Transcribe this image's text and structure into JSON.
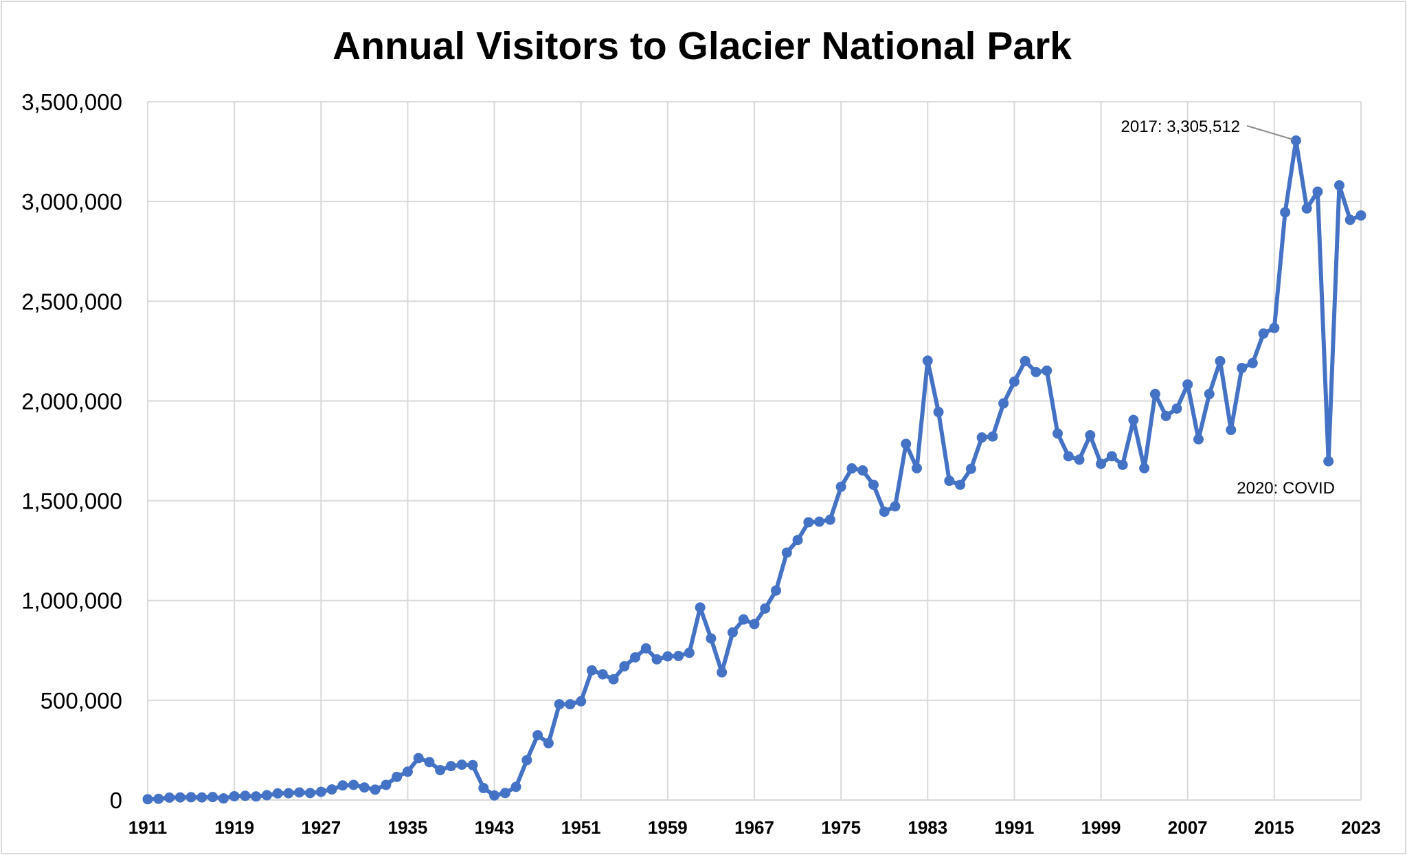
{
  "chart_data": {
    "type": "line",
    "title": "Annual Visitors to Glacier National Park",
    "xlabel": "",
    "ylabel": "",
    "ylim": [
      0,
      3500000
    ],
    "xlim": [
      1911,
      2023
    ],
    "grid": true,
    "legend": "none",
    "line_color": "#4472C4",
    "y_ticks": [
      "0",
      "500,000",
      "1,000,000",
      "1,500,000",
      "2,000,000",
      "2,500,000",
      "3,000,000",
      "3,500,000"
    ],
    "x_ticks": [
      "1911",
      "1919",
      "1927",
      "1935",
      "1943",
      "1951",
      "1959",
      "1967",
      "1975",
      "1983",
      "1991",
      "1999",
      "2007",
      "2015",
      "2023"
    ],
    "x": [
      1911,
      1912,
      1913,
      1914,
      1915,
      1916,
      1917,
      1918,
      1919,
      1920,
      1921,
      1922,
      1923,
      1924,
      1925,
      1926,
      1927,
      1928,
      1929,
      1930,
      1931,
      1932,
      1933,
      1934,
      1935,
      1936,
      1937,
      1938,
      1939,
      1940,
      1941,
      1942,
      1943,
      1944,
      1945,
      1946,
      1947,
      1948,
      1949,
      1950,
      1951,
      1952,
      1953,
      1954,
      1955,
      1956,
      1957,
      1958,
      1959,
      1960,
      1961,
      1962,
      1963,
      1964,
      1965,
      1966,
      1967,
      1968,
      1969,
      1970,
      1971,
      1972,
      1973,
      1974,
      1975,
      1976,
      1977,
      1978,
      1979,
      1980,
      1981,
      1982,
      1983,
      1984,
      1985,
      1986,
      1987,
      1988,
      1989,
      1990,
      1991,
      1992,
      1993,
      1994,
      1995,
      1996,
      1997,
      1998,
      1999,
      2000,
      2001,
      2002,
      2003,
      2004,
      2005,
      2006,
      2007,
      2008,
      2009,
      2010,
      2011,
      2012,
      2013,
      2014,
      2015,
      2016,
      2017,
      2018,
      2019,
      2020,
      2021,
      2022,
      2023
    ],
    "series": [
      {
        "values": [
          4000,
          6000,
          12000,
          13000,
          14000,
          13000,
          15000,
          8000,
          19000,
          21000,
          18000,
          24000,
          33000,
          34000,
          38000,
          35000,
          41000,
          53000,
          73000,
          76000,
          63000,
          52000,
          76000,
          116000,
          142000,
          210000,
          190000,
          150000,
          170000,
          177000,
          175000,
          60000,
          23000,
          35000,
          66000,
          200000,
          325000,
          285000,
          480000,
          480000,
          495000,
          650000,
          630000,
          605000,
          670000,
          715000,
          760000,
          705000,
          720000,
          722000,
          738000,
          965000,
          810000,
          640000,
          840000,
          905000,
          882000,
          960000,
          1050000,
          1240000,
          1303000,
          1392000,
          1395000,
          1405000,
          1570000,
          1662000,
          1652000,
          1580000,
          1445000,
          1472000,
          1785000,
          1663000,
          2202000,
          1945000,
          1600000,
          1580000,
          1660000,
          1817000,
          1822000,
          1988000,
          2097000,
          2200000,
          2145000,
          2152000,
          1837000,
          1723000,
          1706000,
          1828000,
          1685000,
          1723000,
          1680000,
          1905000,
          1663000,
          2035000,
          1925000,
          1962000,
          2083000,
          1808000,
          2035000,
          2200000,
          1855000,
          2165000,
          2190000,
          2338000,
          2366000,
          2946000,
          3305512,
          2965000,
          3049000,
          1698000,
          3081000,
          2908000,
          2930000
        ]
      }
    ],
    "annotations": [
      {
        "text": "2017: 3,305,512",
        "x": 2017,
        "y": 3305512
      },
      {
        "text": "2020: COVID",
        "x": 2020,
        "y": 1698000
      }
    ]
  }
}
